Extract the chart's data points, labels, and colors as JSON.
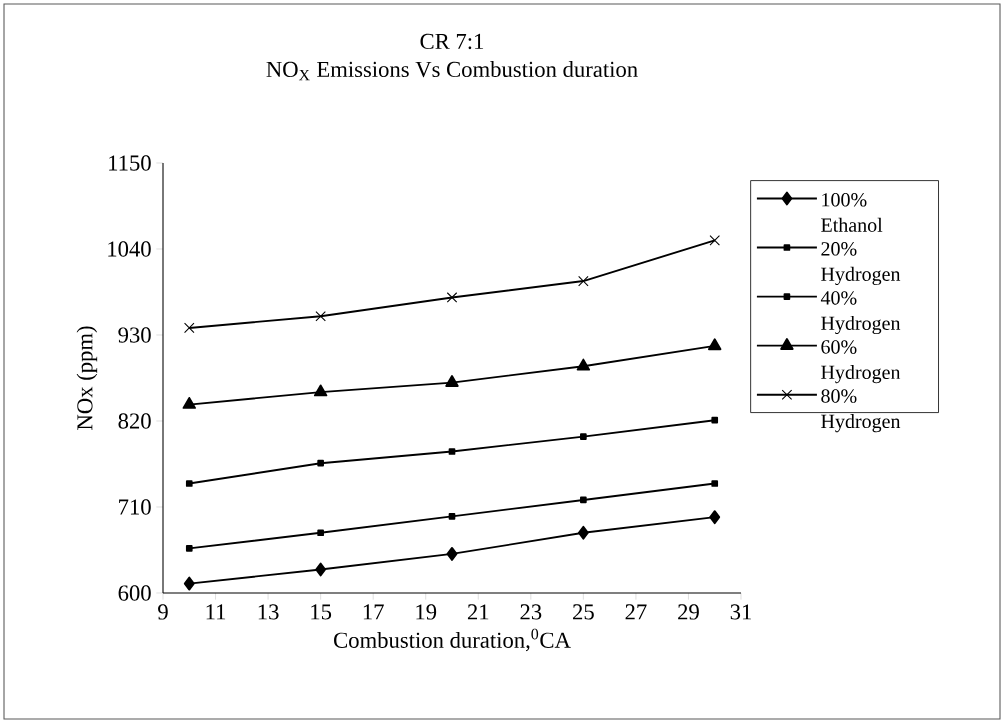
{
  "chart_data": {
    "type": "line",
    "title": "CR 7:1",
    "subtitle": "NO$_{X}$ Emissions Vs Combustion duration",
    "xlabel": "Combustion duration,$^{0}$CA",
    "ylabel": "NOx (ppm)",
    "x": [
      10,
      15,
      20,
      25,
      30
    ],
    "series": [
      {
        "name": "100% Ethanol",
        "color": "#000000",
        "marker": "diamond",
        "values": [
          612,
          630,
          650,
          677,
          697
        ]
      },
      {
        "name": "20% Hydrogen",
        "color": "#000000",
        "marker": "square",
        "values": [
          657,
          677,
          698,
          719,
          740
        ]
      },
      {
        "name": "40% Hydrogen",
        "color": "#000000",
        "marker": "square",
        "values": [
          740,
          766,
          781,
          800,
          821
        ]
      },
      {
        "name": "60% Hydrogen",
        "color": "#000000",
        "marker": "triangle",
        "values": [
          841,
          857,
          869,
          890,
          916
        ]
      },
      {
        "name": "80% Hydrogen",
        "color": "#000000",
        "marker": "cross",
        "values": [
          939,
          954,
          978,
          999,
          1051
        ]
      }
    ],
    "xlim": [
      9,
      31
    ],
    "xticks": [
      9,
      11,
      13,
      15,
      17,
      19,
      21,
      23,
      25,
      27,
      29,
      31
    ],
    "ylim": [
      600,
      1150
    ],
    "yticks": [
      600,
      710,
      820,
      930,
      1040,
      1150
    ],
    "grid": false,
    "legend": "right",
    "line_style": "solid"
  }
}
